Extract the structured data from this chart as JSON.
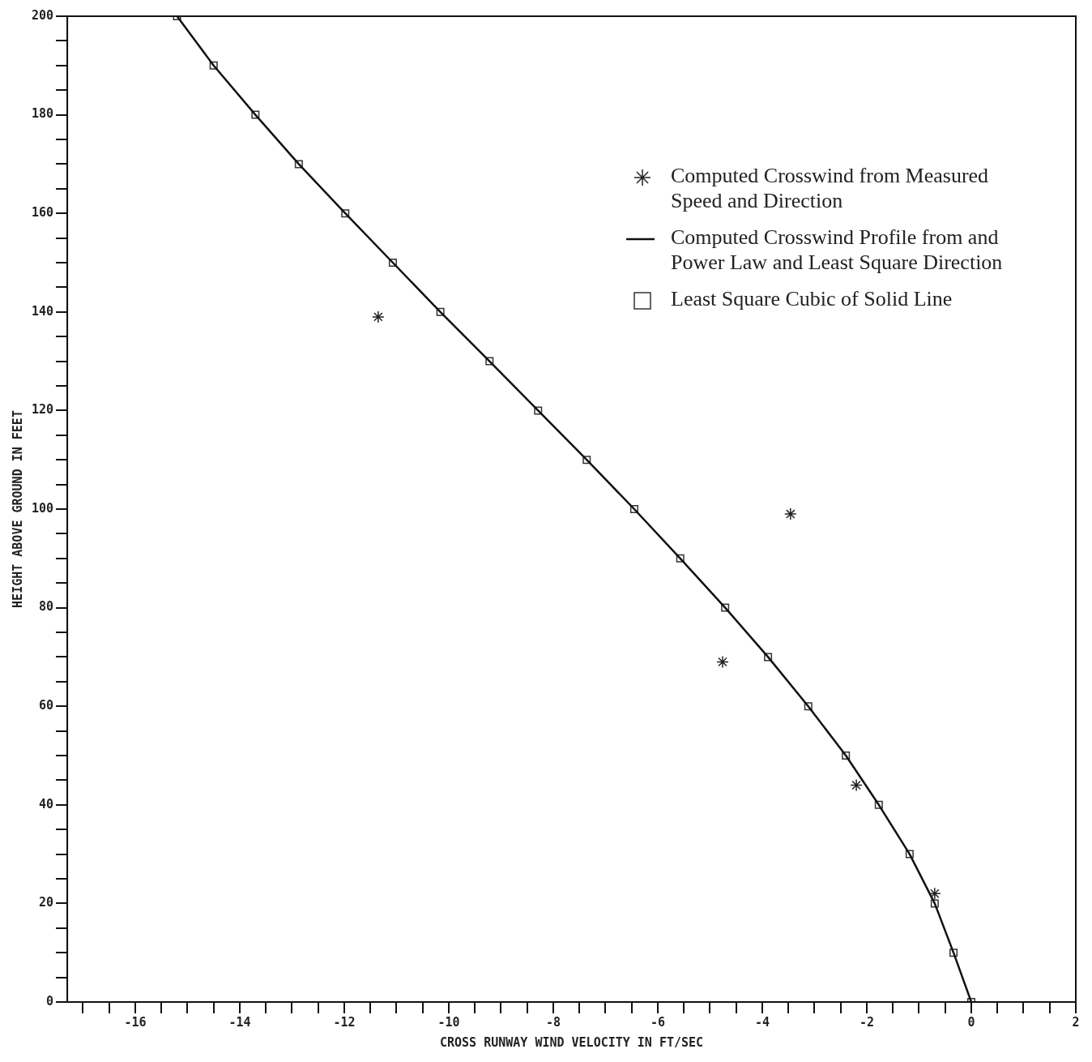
{
  "chart_data": {
    "type": "scatter",
    "xlabel": "CROSS RUNWAY WIND VELOCITY IN FT/SEC",
    "ylabel": "HEIGHT ABOVE GROUND IN FEET",
    "xlim": [
      -17.3,
      2
    ],
    "ylim": [
      0,
      200
    ],
    "xticks": [
      {
        "value": -17,
        "label": null
      },
      {
        "value": -16.5,
        "label": null
      },
      -16,
      {
        "value": -15.5,
        "label": null
      },
      {
        "value": -15,
        "label": null
      },
      {
        "value": -14.5,
        "label": null
      },
      -14,
      {
        "value": -13.5,
        "label": null
      },
      {
        "value": -13,
        "label": null
      },
      {
        "value": -12.5,
        "label": null
      },
      -12,
      {
        "value": -11.5,
        "label": null
      },
      {
        "value": -11,
        "label": null
      },
      {
        "value": -10.5,
        "label": null
      },
      -10,
      {
        "value": -9.5,
        "label": null
      },
      {
        "value": -9,
        "label": null
      },
      {
        "value": -8.5,
        "label": null
      },
      -8,
      {
        "value": -7.5,
        "label": null
      },
      {
        "value": -7,
        "label": null
      },
      {
        "value": -6.5,
        "label": null
      },
      -6,
      {
        "value": -5.5,
        "label": null
      },
      {
        "value": -5,
        "label": null
      },
      {
        "value": -4.5,
        "label": null
      },
      -4,
      {
        "value": -3.5,
        "label": null
      },
      {
        "value": -3,
        "label": null
      },
      {
        "value": -2.5,
        "label": null
      },
      -2,
      {
        "value": -1.5,
        "label": null
      },
      {
        "value": -1,
        "label": null
      },
      {
        "value": -0.5,
        "label": null
      },
      0,
      {
        "value": 0.5,
        "label": null
      },
      {
        "value": 1,
        "label": null
      },
      {
        "value": 1.5,
        "label": null
      },
      2
    ],
    "yticks": [
      0,
      {
        "value": 5,
        "label": null
      },
      {
        "value": 10,
        "label": null
      },
      {
        "value": 15,
        "label": null
      },
      20,
      {
        "value": 25,
        "label": null
      },
      {
        "value": 30,
        "label": null
      },
      {
        "value": 35,
        "label": null
      },
      40,
      {
        "value": 45,
        "label": null
      },
      {
        "value": 50,
        "label": null
      },
      {
        "value": 55,
        "label": null
      },
      60,
      {
        "value": 65,
        "label": null
      },
      {
        "value": 70,
        "label": null
      },
      {
        "value": 75,
        "label": null
      },
      80,
      {
        "value": 85,
        "label": null
      },
      {
        "value": 90,
        "label": null
      },
      {
        "value": 95,
        "label": null
      },
      100,
      {
        "value": 105,
        "label": null
      },
      {
        "value": 110,
        "label": null
      },
      {
        "value": 115,
        "label": null
      },
      120,
      {
        "value": 125,
        "label": null
      },
      {
        "value": 130,
        "label": null
      },
      {
        "value": 135,
        "label": null
      },
      140,
      {
        "value": 145,
        "label": null
      },
      {
        "value": 150,
        "label": null
      },
      {
        "value": 155,
        "label": null
      },
      160,
      {
        "value": 165,
        "label": null
      },
      {
        "value": 170,
        "label": null
      },
      {
        "value": 175,
        "label": null
      },
      180,
      {
        "value": 185,
        "label": null
      },
      {
        "value": 190,
        "label": null
      },
      {
        "value": 195,
        "label": null
      },
      200
    ],
    "grid": false,
    "legend": "top right",
    "series": [
      {
        "name": "Computed Crosswind from Measured Speed and Direction",
        "type": "scatter",
        "marker": "cross",
        "color": "#222222",
        "x": [
          -11.35,
          -3.46,
          -4.76,
          -2.2,
          -0.7
        ],
        "values": [
          139,
          99,
          69,
          44,
          22
        ]
      },
      {
        "name": "Computed Crosswind Profile from and Power Law and Least Square Direction",
        "type": "line",
        "marker": "none",
        "line_style": "solid",
        "color": "#111111",
        "x": [
          0,
          -0.34,
          -0.7,
          -1.18,
          -1.77,
          -2.4,
          -3.12,
          -3.89,
          -4.71,
          -5.57,
          -6.45,
          -7.36,
          -8.29,
          -9.22,
          -10.16,
          -11.07,
          -11.98,
          -12.87,
          -13.7,
          -14.5,
          -15.2
        ],
        "values": [
          0,
          10,
          20,
          30,
          40,
          50,
          60,
          70,
          80,
          90,
          100,
          110,
          120,
          130,
          140,
          150,
          160,
          170,
          180,
          190,
          200
        ]
      },
      {
        "name": "Least Square Cubic of Solid Line",
        "type": "scatter",
        "marker": "square",
        "color": "#333333",
        "x": [
          0,
          -0.34,
          -0.7,
          -1.18,
          -1.77,
          -2.4,
          -3.12,
          -3.89,
          -4.71,
          -5.57,
          -6.45,
          -7.36,
          -8.29,
          -9.22,
          -10.16,
          -11.07,
          -11.98,
          -12.87,
          -13.7,
          -14.5,
          -15.2
        ],
        "values": [
          0,
          10,
          20,
          30,
          40,
          50,
          60,
          70,
          80,
          90,
          100,
          110,
          120,
          130,
          140,
          150,
          160,
          170,
          180,
          190,
          200
        ]
      }
    ]
  }
}
